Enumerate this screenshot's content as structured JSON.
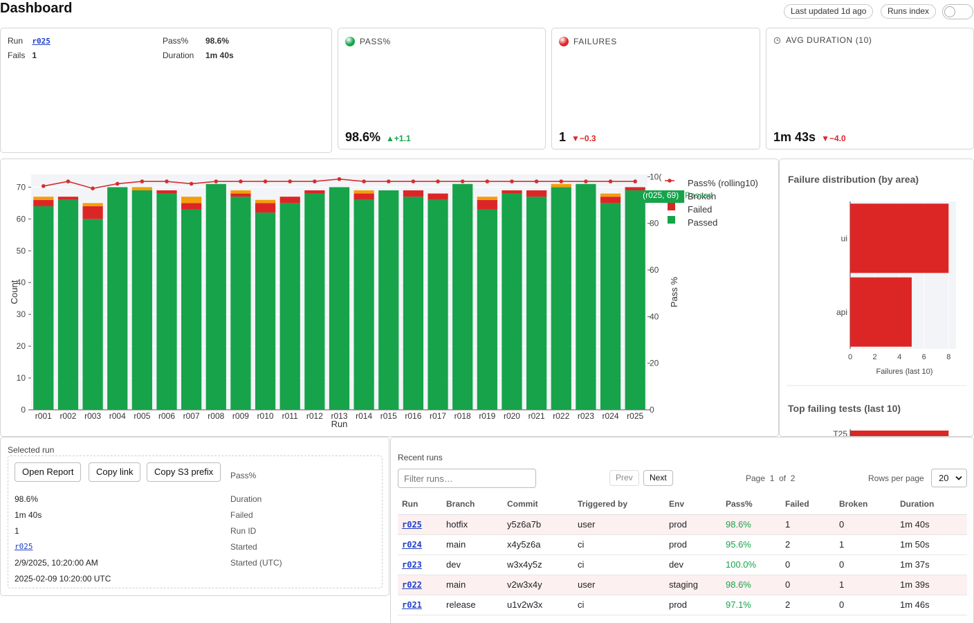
{
  "header": {
    "title": "Dashboard",
    "last_updated": "Last updated 1d ago",
    "runs_index": "Runs index"
  },
  "summary": {
    "run_label": "Run",
    "run_value": "r025",
    "fails_label": "Fails",
    "fails_value": "1",
    "pass_label": "Pass%",
    "pass_value": "98.6%",
    "duration_label": "Duration",
    "duration_value": "1m 40s"
  },
  "kpis": [
    {
      "title": "PASS%",
      "value": "98.6%",
      "delta": "▲+1.1",
      "delta_color": "#16a34a",
      "dot": "#16a34a",
      "icon": "green-dot-icon"
    },
    {
      "title": "FAILURES",
      "value": "1",
      "delta": "▼−0.3",
      "delta_color": "#dc2626",
      "dot": "#dc2626",
      "icon": "red-dot-icon"
    },
    {
      "title": "AVG DURATION (10)",
      "value": "1m 43s",
      "delta": "▼−4.0",
      "delta_color": "#dc2626",
      "icon": "clock-icon"
    }
  ],
  "colors": {
    "passed": "#16a34a",
    "failed": "#dc2626",
    "broken": "#f59e0b",
    "line": "#d32f2f"
  },
  "chart_data": [
    {
      "type": "bar",
      "stacked": true,
      "categories": [
        "r001",
        "r002",
        "r003",
        "r004",
        "r005",
        "r006",
        "r007",
        "r008",
        "r009",
        "r010",
        "r011",
        "r012",
        "r013",
        "r014",
        "r015",
        "r016",
        "r017",
        "r018",
        "r019",
        "r020",
        "r021",
        "r022",
        "r023",
        "r024",
        "r025"
      ],
      "series": [
        {
          "name": "Passed",
          "values": [
            64,
            66,
            60,
            70,
            69,
            68,
            63,
            71,
            67,
            62,
            65,
            68,
            70,
            66,
            69,
            67,
            66,
            71,
            63,
            68,
            67,
            70,
            71,
            65,
            69
          ]
        },
        {
          "name": "Failed",
          "values": [
            2,
            1,
            4,
            0,
            0,
            1,
            2,
            0,
            1,
            3,
            2,
            1,
            0,
            2,
            0,
            2,
            2,
            0,
            3,
            1,
            2,
            0,
            0,
            2,
            1
          ]
        },
        {
          "name": "Broken",
          "values": [
            1,
            0,
            1,
            0,
            1,
            0,
            2,
            0,
            1,
            1,
            0,
            0,
            0,
            1,
            0,
            0,
            0,
            0,
            1,
            0,
            0,
            1,
            0,
            1,
            0
          ]
        }
      ],
      "line_series": {
        "name": "Pass% (rolling10)",
        "axis": "right",
        "values": [
          96,
          98,
          95,
          97,
          98,
          98,
          97,
          98,
          98,
          98,
          98,
          98,
          99,
          98,
          98,
          98,
          98,
          98,
          98,
          98,
          98,
          98,
          98,
          98,
          98
        ]
      },
      "xlabel": "Run",
      "ylabel": "Count",
      "y2label": "Pass %",
      "ylim": [
        0,
        74
      ],
      "y2lim": [
        0,
        101
      ],
      "yticks": [
        0,
        10,
        20,
        30,
        40,
        50,
        60,
        70
      ],
      "y2ticks": [
        0,
        20,
        40,
        60,
        80,
        "10("
      ],
      "legend": [
        "Pass% (rolling10)",
        "Broken",
        "Failed",
        "Passed"
      ],
      "legend_position": "right",
      "hover_label": "(r025, 69)",
      "hover_series": "Passed",
      "grid": true
    },
    {
      "type": "bar",
      "orientation": "horizontal",
      "title": "Failure distribution (by area)",
      "categories": [
        "ui",
        "api"
      ],
      "values": [
        8,
        5
      ],
      "xlabel": "Failures (last 10)",
      "xticks": [
        0,
        2,
        4,
        6,
        8
      ],
      "xlim": [
        0,
        8.6
      ]
    },
    {
      "type": "bar",
      "orientation": "horizontal",
      "title": "Top failing tests (last 10)",
      "categories": [
        "T25"
      ],
      "values": [
        8
      ]
    }
  ],
  "selected": {
    "title": "Selected run",
    "buttons": [
      "Open Report",
      "Copy link",
      "Copy S3 prefix"
    ],
    "labels": [
      "Pass%",
      "Duration",
      "Failed",
      "Run ID",
      "Started",
      "Started (UTC)"
    ],
    "values": [
      "98.6%",
      "1m 40s",
      "1",
      "r025",
      "2/9/2025, 10:20:00 AM",
      "2025-02-09 10:20:00 UTC"
    ]
  },
  "recent": {
    "title": "Recent runs",
    "filter_placeholder": "Filter runs…",
    "prev": "Prev",
    "next": "Next",
    "page_label": "Page",
    "page": "1",
    "of_label": "of",
    "pages": "2",
    "rows_per_page_label": "Rows per page",
    "rows_per_page": "20",
    "columns": [
      "Run",
      "Branch",
      "Commit",
      "Triggered by",
      "Env",
      "Pass%",
      "Failed",
      "Broken",
      "Duration"
    ],
    "rows": [
      [
        "r025",
        "hotfix",
        "y5z6a7b",
        "user",
        "prod",
        "98.6%",
        "1",
        "0",
        "1m 40s"
      ],
      [
        "r024",
        "main",
        "x4y5z6a",
        "ci",
        "prod",
        "95.6%",
        "2",
        "1",
        "1m 50s"
      ],
      [
        "r023",
        "dev",
        "w3x4y5z",
        "ci",
        "dev",
        "100.0%",
        "0",
        "0",
        "1m 37s"
      ],
      [
        "r022",
        "main",
        "v2w3x4y",
        "user",
        "staging",
        "98.6%",
        "0",
        "1",
        "1m 39s"
      ],
      [
        "r021",
        "release",
        "u1v2w3x",
        "ci",
        "prod",
        "97.1%",
        "2",
        "0",
        "1m 46s"
      ]
    ]
  }
}
